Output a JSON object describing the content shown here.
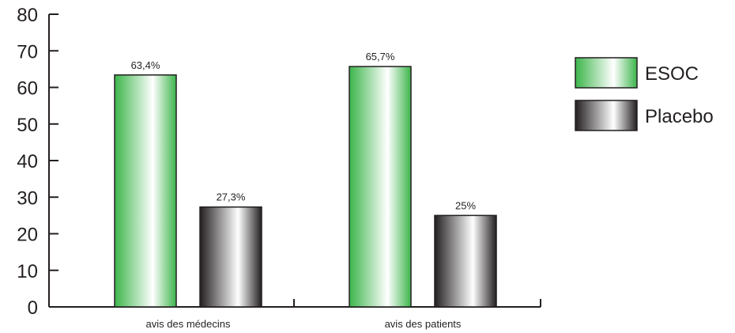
{
  "chart_data": {
    "type": "bar",
    "title": "",
    "xlabel": "",
    "ylabel": "",
    "categories": [
      "avis des médecins",
      "avis des patients"
    ],
    "series": [
      {
        "name": "ESOC",
        "values": [
          63.4,
          65.7
        ],
        "labels": [
          "63,4%",
          "65,7%"
        ],
        "color": "#3cb54a"
      },
      {
        "name": "Placebo",
        "values": [
          27.3,
          25
        ],
        "labels": [
          "27,3%",
          "25%"
        ],
        "color": "#231f20"
      }
    ],
    "ylim": [
      0,
      80
    ],
    "yticks": [
      0,
      10,
      20,
      30,
      40,
      50,
      60,
      70,
      80
    ],
    "grid": false,
    "legend": "right"
  }
}
